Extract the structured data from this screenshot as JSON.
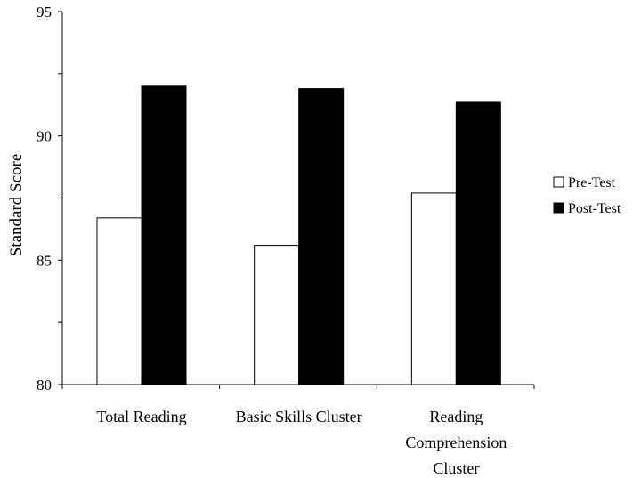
{
  "chart_data": {
    "type": "bar",
    "title": "",
    "xlabel": "",
    "ylabel": "Standard Score",
    "ylim": [
      80,
      95
    ],
    "yticks": [
      80,
      85,
      90,
      95
    ],
    "categories": [
      [
        "Total Reading"
      ],
      [
        "Basic Skills Cluster"
      ],
      [
        "Reading",
        "Comprehension",
        "Cluster"
      ]
    ],
    "series": [
      {
        "name": "Pre-Test",
        "values": [
          86.7,
          85.6,
          87.7
        ],
        "color": "#ffffff"
      },
      {
        "name": "Post-Test",
        "values": [
          92.0,
          91.9,
          91.35
        ],
        "color": "#000000"
      }
    ],
    "grid": false,
    "legend_position": "right"
  }
}
